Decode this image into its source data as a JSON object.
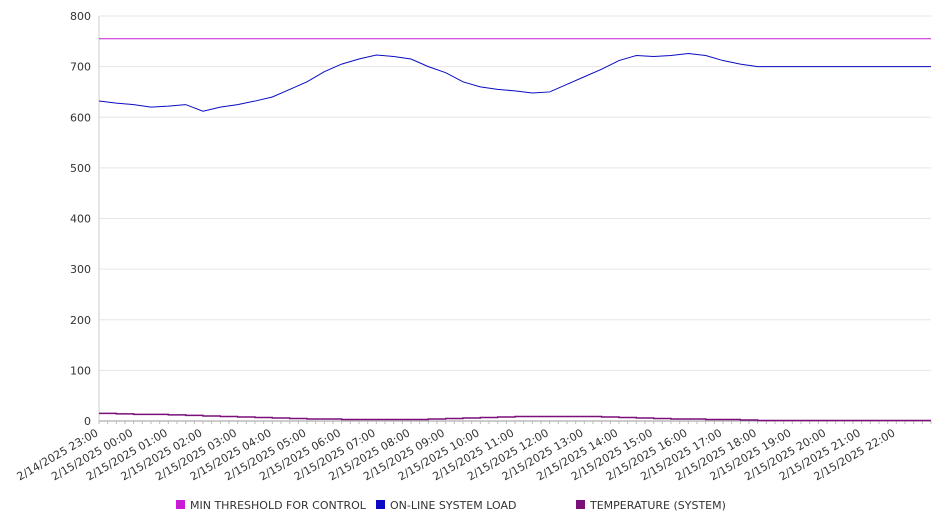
{
  "chart_data": {
    "type": "line",
    "title": "",
    "xlabel": "",
    "ylabel": "",
    "ylim": [
      0,
      800
    ],
    "y_ticks": [
      0,
      100,
      200,
      300,
      400,
      500,
      600,
      700,
      800
    ],
    "grid": true,
    "legend_position": "bottom",
    "x_tick_labels": [
      "2/14/2025 23:00",
      "2/15/2025 00:00",
      "2/15/2025 01:00",
      "2/15/2025 02:00",
      "2/15/2025 03:00",
      "2/15/2025 04:00",
      "2/15/2025 05:00",
      "2/15/2025 06:00",
      "2/15/2025 07:00",
      "2/15/2025 08:00",
      "2/15/2025 09:00",
      "2/15/2025 10:00",
      "2/15/2025 11:00",
      "2/15/2025 12:00",
      "2/15/2025 13:00",
      "2/15/2025 14:00",
      "2/15/2025 15:00",
      "2/15/2025 16:00",
      "2/15/2025 17:00",
      "2/15/2025 18:00",
      "2/15/2025 19:00",
      "2/15/2025 20:00",
      "2/15/2025 21:00",
      "2/15/2025 22:00"
    ],
    "x_hours": [
      0,
      0.5,
      1,
      1.5,
      2,
      2.5,
      3,
      3.5,
      4,
      4.5,
      5,
      5.5,
      6,
      6.5,
      7,
      7.5,
      8,
      8.5,
      9,
      9.5,
      10,
      10.5,
      11,
      11.5,
      12,
      12.5,
      13,
      13.5,
      14,
      14.5,
      15,
      15.5,
      16,
      16.5,
      17,
      17.5,
      18,
      18.5,
      19,
      19.5,
      20,
      20.5,
      21,
      21.5,
      22,
      22.5,
      23,
      23.5,
      24
    ],
    "series": [
      {
        "name": "MIN THRESHOLD FOR CONTROL",
        "color": "#c81bd6",
        "values": [
          755,
          755,
          755,
          755,
          755,
          755,
          755,
          755,
          755,
          755,
          755,
          755,
          755,
          755,
          755,
          755,
          755,
          755,
          755,
          755,
          755,
          755,
          755,
          755,
          755,
          755,
          755,
          755,
          755,
          755,
          755,
          755,
          755,
          755,
          755,
          755,
          755,
          755,
          755,
          755,
          755,
          755,
          755,
          755,
          755,
          755,
          755,
          755,
          755
        ]
      },
      {
        "name": "ON-LINE SYSTEM LOAD",
        "color": "#0a0ac2",
        "values": [
          632,
          628,
          625,
          620,
          622,
          625,
          612,
          620,
          625,
          632,
          640,
          655,
          670,
          690,
          705,
          715,
          723,
          720,
          715,
          700,
          688,
          670,
          660,
          655,
          652,
          648,
          650,
          665,
          680,
          695,
          712,
          722,
          720,
          722,
          726,
          722,
          712,
          705,
          700,
          700,
          700,
          700,
          700,
          700,
          700,
          700,
          700,
          700,
          700
        ]
      },
      {
        "name": "TEMPERATURE (SYSTEM)",
        "color": "#7a0f7a",
        "values": [
          15,
          14,
          13,
          13,
          12,
          11,
          10,
          9,
          8,
          7,
          6,
          5,
          4,
          4,
          3,
          3,
          3,
          3,
          3,
          4,
          5,
          6,
          7,
          8,
          9,
          9,
          9,
          9,
          9,
          8,
          7,
          6,
          5,
          4,
          4,
          3,
          3,
          2,
          1,
          1,
          1,
          1,
          1,
          1,
          1,
          1,
          1,
          1,
          1
        ]
      }
    ]
  }
}
